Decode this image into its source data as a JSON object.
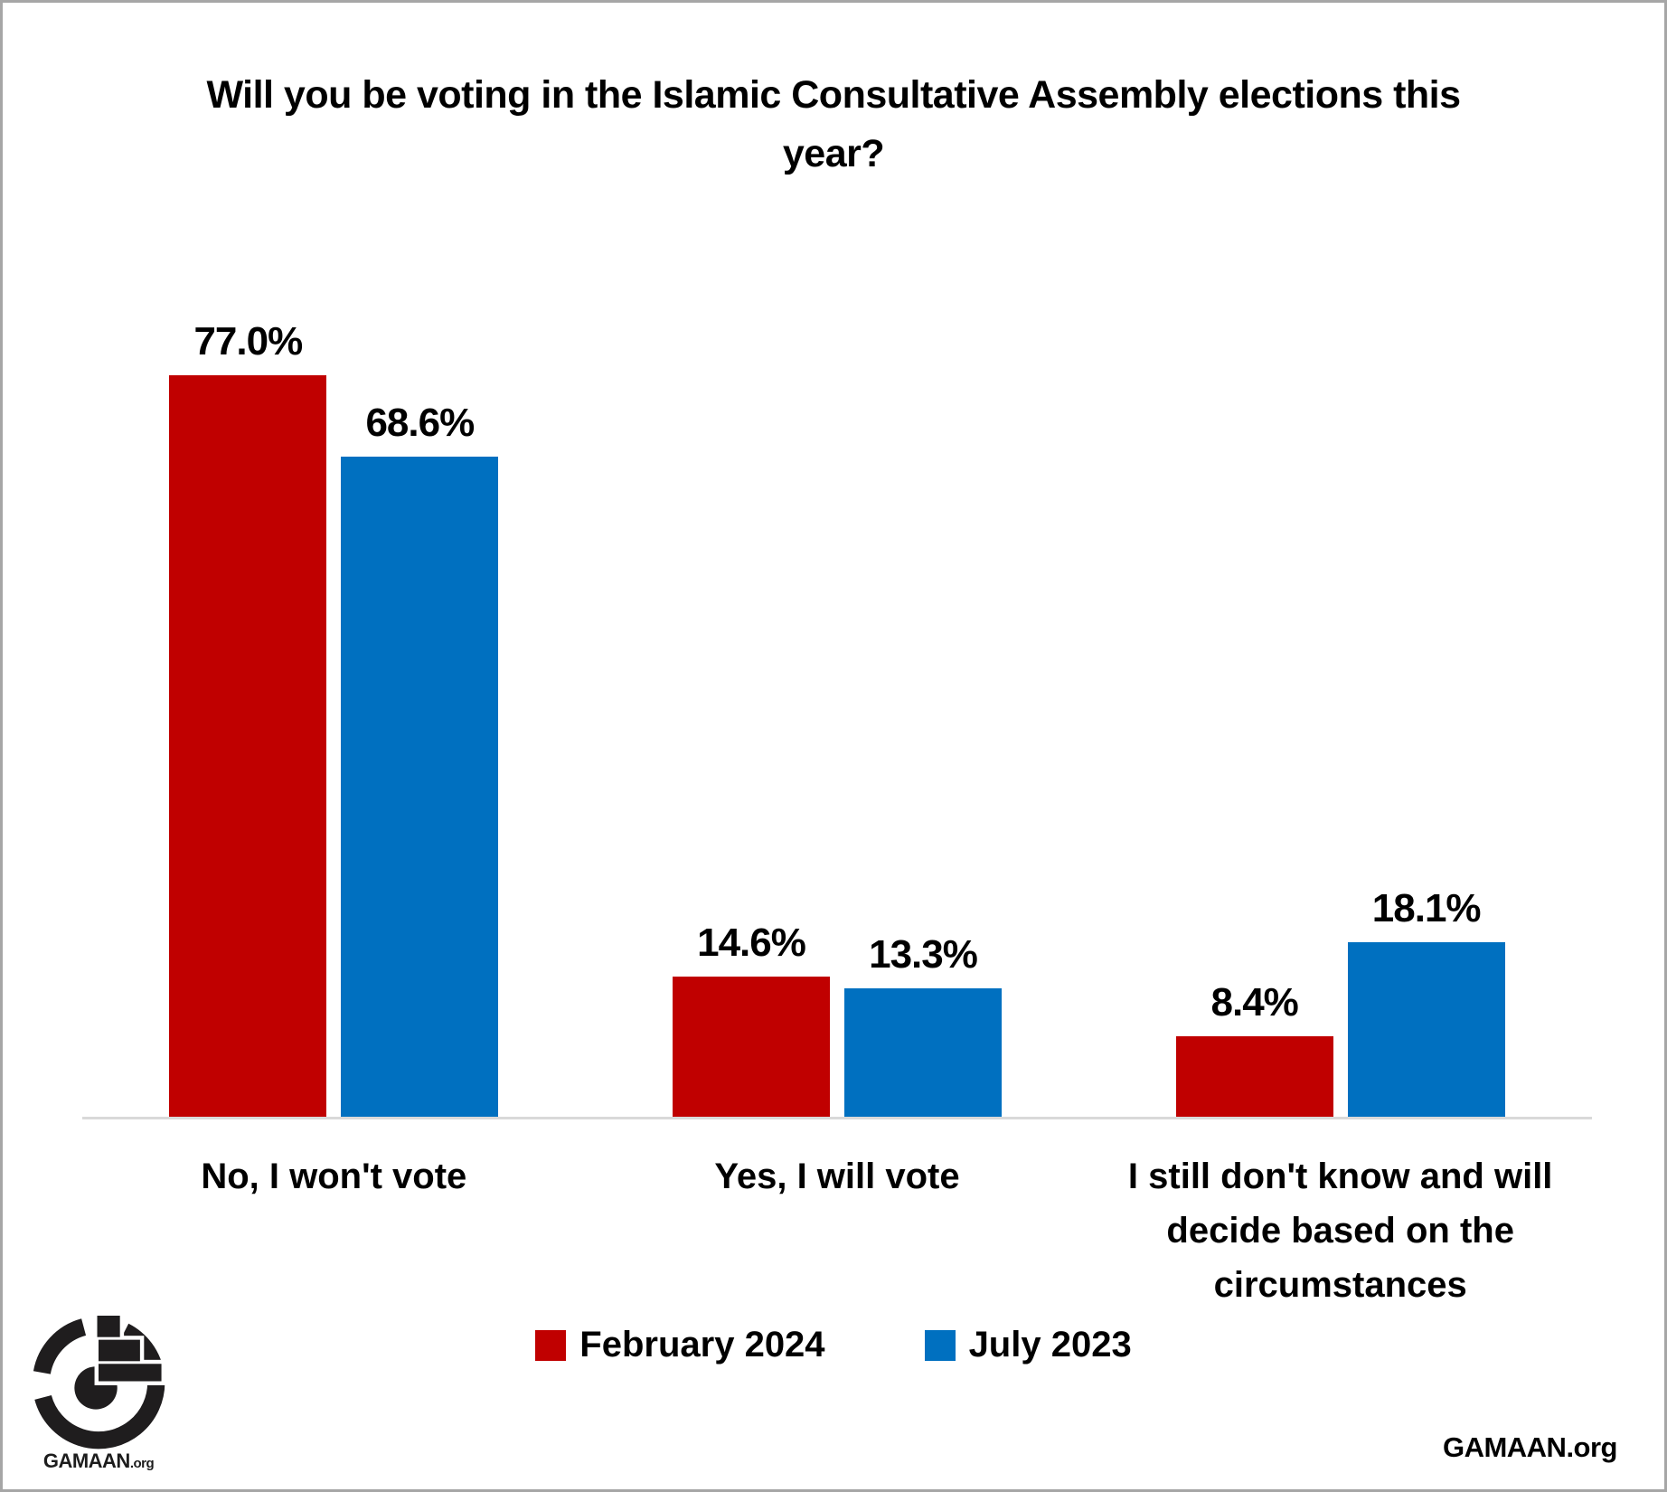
{
  "title": "Will you be voting in the Islamic Consultative Assembly elections this year?",
  "chart_data": {
    "type": "bar",
    "title": "Will you be voting in the Islamic Consultative Assembly elections this year?",
    "categories": [
      "No, I won't vote",
      "Yes, I will vote",
      "I still don't know and will decide based on the circumstances"
    ],
    "series": [
      {
        "name": "February 2024",
        "color": "#c00000",
        "values": [
          77.0,
          14.6,
          8.4
        ]
      },
      {
        "name": "July 2023",
        "color": "#0070c0",
        "values": [
          68.6,
          13.3,
          18.1
        ]
      }
    ],
    "value_suffix": "%",
    "value_decimals": 1,
    "ylim": [
      0,
      92.5
    ],
    "grid": false,
    "legend_position": "bottom-center",
    "axis_line_color": "#d9d9d9"
  },
  "legend": {
    "items": [
      {
        "label": "February 2024",
        "color": "#c00000"
      },
      {
        "label": "July 2023",
        "color": "#0070c0"
      }
    ]
  },
  "branding": {
    "logo_name": "GAMAAN",
    "logo_suffix": ".org",
    "footer_right": "GAMAAN.org"
  }
}
